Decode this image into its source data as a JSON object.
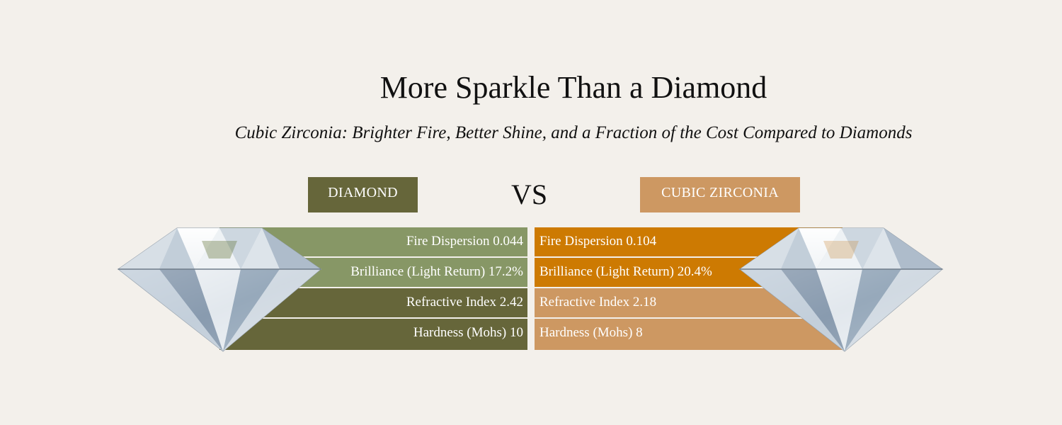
{
  "title": "More Sparkle Than a Diamond",
  "subtitle": "Cubic Zirconia: Brighter Fire, Better Shine, and a Fraction of the Cost Compared to Diamonds",
  "vs_label": "VS",
  "colors": {
    "background": "#f3f0eb",
    "diamond_light": "#879766",
    "diamond_dark": "#66663a",
    "cz_bright": "#cd7a02",
    "cz_light": "#cd9862"
  },
  "diamond": {
    "label": "DIAMOND",
    "icon": "diamond-gem-icon",
    "rows": [
      {
        "text": "Fire Dispersion  0.044",
        "color": "#879766"
      },
      {
        "text": "Brilliance (Light Return)  17.2%",
        "color": "#879766"
      },
      {
        "text": "Refractive Index  2.42",
        "color": "#66663a"
      },
      {
        "text": "Hardness (Mohs)  10",
        "color": "#66663a"
      }
    ]
  },
  "cubic_zirconia": {
    "label": "CUBIC ZIRCONIA",
    "icon": "cubic-zirconia-gem-icon",
    "rows": [
      {
        "text": "Fire Dispersion  0.104",
        "color": "#cd7a02"
      },
      {
        "text": "Brilliance (Light Return)  20.4%",
        "color": "#cd7a02"
      },
      {
        "text": "Refractive Index  2.18",
        "color": "#cd9862"
      },
      {
        "text": "Hardness (Mohs)  8",
        "color": "#cd9862"
      }
    ]
  }
}
